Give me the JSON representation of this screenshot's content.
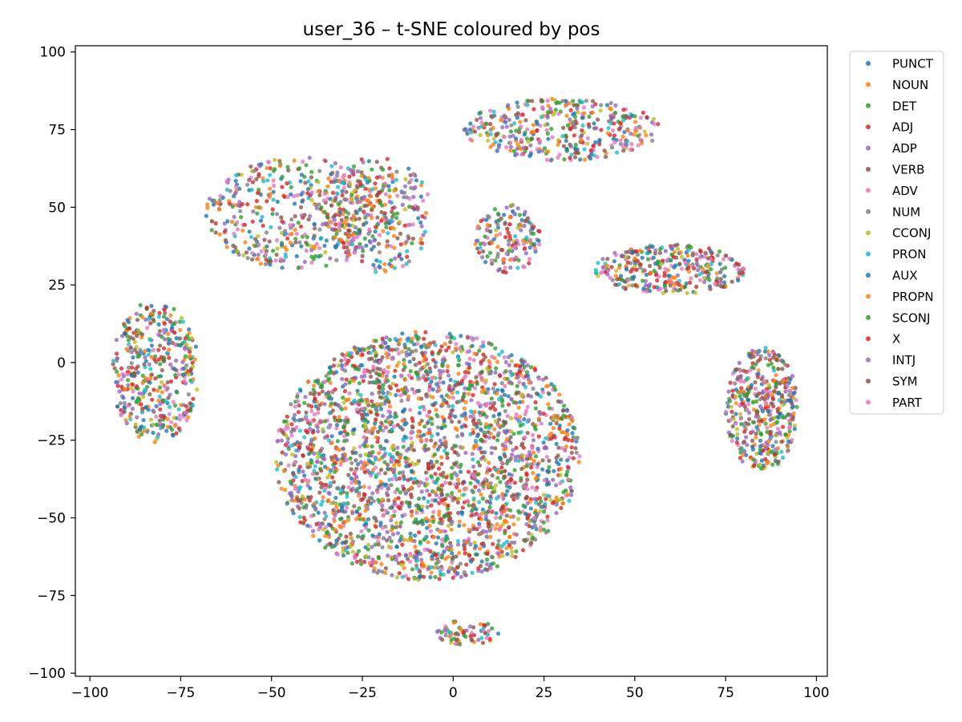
{
  "chart_data": {
    "type": "scatter",
    "title": "user_36 – t-SNE coloured by pos",
    "xlabel": "",
    "ylabel": "",
    "xlim": [
      -104,
      103
    ],
    "ylim": [
      -101,
      102
    ],
    "xticks": [
      -100,
      -75,
      -50,
      -25,
      0,
      25,
      50,
      75,
      100
    ],
    "yticks": [
      -100,
      -75,
      -50,
      -25,
      0,
      25,
      50,
      75,
      100
    ],
    "grid": false,
    "legend_position": "outside-top-right",
    "series": [
      {
        "name": "PUNCT",
        "color": "#1f77b4"
      },
      {
        "name": "NOUN",
        "color": "#ff7f0e"
      },
      {
        "name": "DET",
        "color": "#2ca02c"
      },
      {
        "name": "ADJ",
        "color": "#d62728"
      },
      {
        "name": "ADP",
        "color": "#9467bd"
      },
      {
        "name": "VERB",
        "color": "#8c564b"
      },
      {
        "name": "ADV",
        "color": "#e377c2"
      },
      {
        "name": "NUM",
        "color": "#7f7f7f"
      },
      {
        "name": "CCONJ",
        "color": "#bcbd22"
      },
      {
        "name": "PRON",
        "color": "#17becf"
      },
      {
        "name": "AUX",
        "color": "#1f77b4"
      },
      {
        "name": "PROPN",
        "color": "#ff7f0e"
      },
      {
        "name": "SCONJ",
        "color": "#2ca02c"
      },
      {
        "name": "X",
        "color": "#d62728"
      },
      {
        "name": "INTJ",
        "color": "#9467bd"
      },
      {
        "name": "SYM",
        "color": "#8c564b"
      },
      {
        "name": "PART",
        "color": "#e377c2"
      }
    ],
    "clusters": [
      {
        "cx": -7,
        "cy": -30,
        "rx": 42,
        "ry": 40,
        "n": 2600
      },
      {
        "cx": 85,
        "cy": -15,
        "rx": 10,
        "ry": 20,
        "n": 420
      },
      {
        "cx": -82,
        "cy": -3,
        "rx": 12,
        "ry": 23,
        "n": 420
      },
      {
        "cx": 15,
        "cy": 40,
        "rx": 9,
        "ry": 11,
        "n": 160
      },
      {
        "cx": 4,
        "cy": -87,
        "rx": 9,
        "ry": 4,
        "n": 70
      },
      {
        "cx": -42,
        "cy": 48,
        "rx": 26,
        "ry": 18,
        "n": 480
      },
      {
        "cx": -20,
        "cy": 48,
        "rx": 14,
        "ry": 19,
        "n": 260
      },
      {
        "cx": 60,
        "cy": 30,
        "rx": 21,
        "ry": 8,
        "n": 330
      },
      {
        "cx": 30,
        "cy": 75,
        "rx": 27,
        "ry": 10,
        "n": 380
      }
    ]
  }
}
